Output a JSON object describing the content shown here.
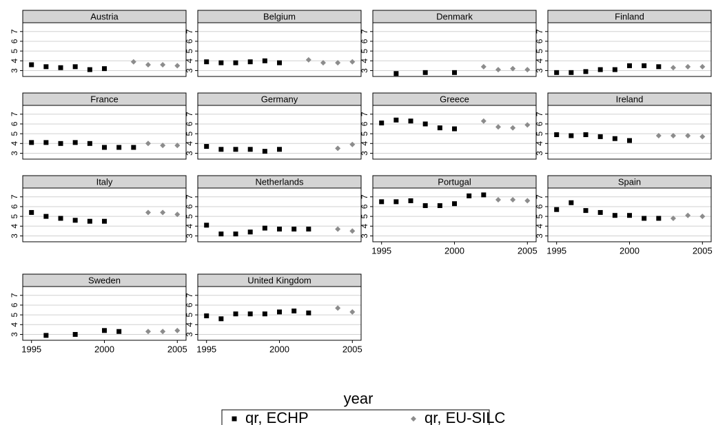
{
  "chart_data": {
    "type": "scatter",
    "xlabel": "year",
    "x": [
      1995,
      1996,
      1997,
      1998,
      1999,
      2000,
      2001,
      2002,
      2003,
      2004,
      2005
    ],
    "xlim": [
      1994.4,
      2005.6
    ],
    "xticks": [
      1995,
      2000,
      2005
    ],
    "ylim": [
      2.4,
      7.9
    ],
    "yticks": [
      3,
      4,
      5,
      6,
      7
    ],
    "grid": true,
    "series": [
      {
        "name": "qr, ECHP",
        "color": "#000000",
        "marker": "square"
      },
      {
        "name": "qr, EU-SILC",
        "color": "#8c8c8c",
        "marker": "diamond"
      }
    ],
    "panels": [
      {
        "title": "Austria",
        "series": [
          {
            "values": [
              3.6,
              3.4,
              3.3,
              3.4,
              3.1,
              3.2,
              null,
              null,
              null,
              null,
              null
            ]
          },
          {
            "values": [
              null,
              null,
              null,
              null,
              null,
              null,
              null,
              3.9,
              3.6,
              3.6,
              3.5
            ]
          }
        ]
      },
      {
        "title": "Belgium",
        "series": [
          {
            "values": [
              3.9,
              3.8,
              3.8,
              3.9,
              4.0,
              3.8,
              null,
              null,
              null,
              null,
              null
            ]
          },
          {
            "values": [
              null,
              null,
              null,
              null,
              null,
              null,
              null,
              4.1,
              3.8,
              3.8,
              3.9
            ]
          }
        ]
      },
      {
        "title": "Denmark",
        "series": [
          {
            "values": [
              null,
              2.7,
              null,
              2.8,
              null,
              2.8,
              null,
              null,
              null,
              null,
              null
            ]
          },
          {
            "values": [
              null,
              null,
              null,
              null,
              null,
              null,
              null,
              3.4,
              3.1,
              3.2,
              3.1
            ]
          }
        ]
      },
      {
        "title": "Finland",
        "series": [
          {
            "values": [
              2.8,
              2.8,
              2.9,
              3.1,
              3.1,
              3.5,
              3.5,
              3.4,
              null,
              null,
              null
            ]
          },
          {
            "values": [
              null,
              null,
              null,
              null,
              null,
              null,
              null,
              null,
              3.3,
              3.4,
              3.4
            ]
          }
        ]
      },
      {
        "title": "France",
        "series": [
          {
            "values": [
              4.1,
              4.1,
              4.0,
              4.1,
              4.0,
              3.6,
              3.6,
              3.6,
              null,
              null,
              null
            ]
          },
          {
            "values": [
              null,
              null,
              null,
              null,
              null,
              null,
              null,
              null,
              4.0,
              3.8,
              3.8
            ]
          }
        ]
      },
      {
        "title": "Germany",
        "series": [
          {
            "values": [
              3.7,
              3.4,
              3.4,
              3.4,
              3.2,
              3.4,
              null,
              null,
              null,
              null,
              null
            ]
          },
          {
            "values": [
              null,
              null,
              null,
              null,
              null,
              null,
              null,
              null,
              null,
              3.5,
              3.9
            ]
          }
        ]
      },
      {
        "title": "Greece",
        "series": [
          {
            "values": [
              6.1,
              6.4,
              6.3,
              6.0,
              5.6,
              5.5,
              null,
              null,
              null,
              null,
              null
            ]
          },
          {
            "values": [
              null,
              null,
              null,
              null,
              null,
              null,
              null,
              6.3,
              5.7,
              5.6,
              5.9
            ]
          }
        ]
      },
      {
        "title": "Ireland",
        "series": [
          {
            "values": [
              4.9,
              4.8,
              4.9,
              4.7,
              4.5,
              4.3,
              null,
              null,
              null,
              null,
              null
            ]
          },
          {
            "values": [
              null,
              null,
              null,
              null,
              null,
              null,
              null,
              4.8,
              4.8,
              4.8,
              4.7
            ]
          }
        ]
      },
      {
        "title": "Italy",
        "series": [
          {
            "values": [
              5.4,
              5.0,
              4.8,
              4.6,
              4.5,
              4.5,
              null,
              null,
              null,
              null,
              null
            ]
          },
          {
            "values": [
              null,
              null,
              null,
              null,
              null,
              null,
              null,
              null,
              5.4,
              5.4,
              5.2
            ]
          }
        ]
      },
      {
        "title": "Netherlands",
        "series": [
          {
            "values": [
              4.1,
              3.2,
              3.2,
              3.4,
              3.8,
              3.7,
              3.7,
              3.7,
              null,
              null,
              null
            ]
          },
          {
            "values": [
              null,
              null,
              null,
              null,
              null,
              null,
              null,
              null,
              null,
              3.7,
              3.5
            ]
          }
        ]
      },
      {
        "title": "Portugal",
        "series": [
          {
            "values": [
              6.5,
              6.5,
              6.6,
              6.1,
              6.1,
              6.3,
              7.1,
              7.2,
              null,
              null,
              null
            ]
          },
          {
            "values": [
              null,
              null,
              null,
              null,
              null,
              null,
              null,
              null,
              6.7,
              6.7,
              6.6
            ]
          }
        ]
      },
      {
        "title": "Spain",
        "series": [
          {
            "values": [
              5.7,
              6.4,
              5.6,
              5.4,
              5.1,
              5.1,
              4.8,
              4.8,
              null,
              null,
              null
            ]
          },
          {
            "values": [
              null,
              null,
              null,
              null,
              null,
              null,
              null,
              null,
              4.8,
              5.1,
              5.0
            ]
          }
        ]
      },
      {
        "title": "Sweden",
        "series": [
          {
            "values": [
              null,
              2.9,
              null,
              3.0,
              null,
              3.4,
              3.3,
              null,
              null,
              null,
              null
            ]
          },
          {
            "values": [
              null,
              null,
              null,
              null,
              null,
              null,
              null,
              null,
              3.3,
              3.3,
              3.4
            ]
          }
        ]
      },
      {
        "title": "United Kingdom",
        "series": [
          {
            "values": [
              4.9,
              4.6,
              5.1,
              5.1,
              5.1,
              5.3,
              5.4,
              5.2,
              null,
              null,
              null
            ]
          },
          {
            "values": [
              null,
              null,
              null,
              null,
              null,
              null,
              null,
              null,
              null,
              5.7,
              5.3
            ]
          }
        ]
      }
    ]
  }
}
